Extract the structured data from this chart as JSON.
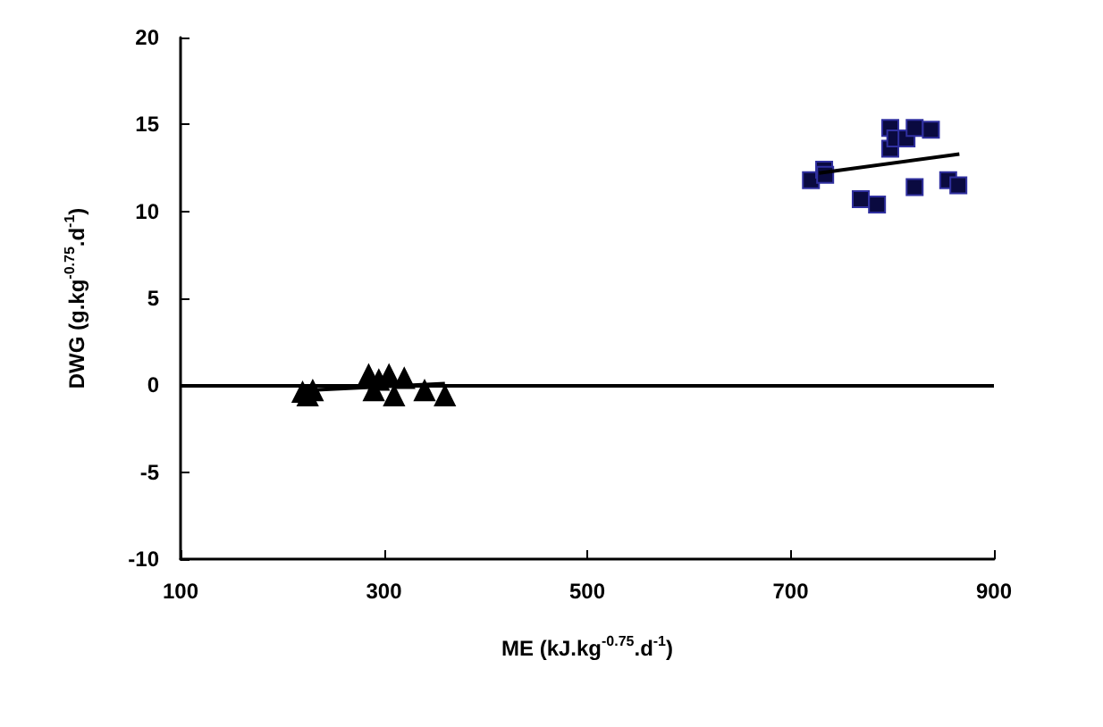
{
  "chart_data": {
    "type": "scatter",
    "xlabel": "ME (kJ.kg$^{-0.75}$.d$^{-1}$)",
    "ylabel": "DWG (g.kg$^{-0.75}$.d$^{-1}$)",
    "xlim": [
      100,
      900
    ],
    "xticks": [
      100,
      300,
      500,
      700,
      900
    ],
    "ylim": [
      -10,
      20
    ],
    "yticks": [
      -10,
      -5,
      0,
      5,
      10,
      15,
      20
    ],
    "grid": false,
    "ref_lines": [
      {
        "axis": "y",
        "value": 0,
        "color": "#000000"
      }
    ],
    "series": [
      {
        "marker": "triangle",
        "color": "#000000",
        "x": [
          220,
          225,
          230,
          285,
          290,
          295,
          305,
          310,
          320,
          340,
          360
        ],
        "values": [
          -0.4,
          -0.6,
          -0.3,
          0.6,
          -0.3,
          0.3,
          0.6,
          -0.6,
          0.4,
          -0.3,
          -0.6
        ]
      },
      {
        "marker": "square",
        "color": "#0a0a40",
        "x": [
          720,
          733,
          734,
          769,
          785,
          798,
          798,
          803,
          814,
          822,
          838,
          822,
          855,
          865
        ],
        "values": [
          11.8,
          12.4,
          12.1,
          10.7,
          10.4,
          14.8,
          13.6,
          14.2,
          14.2,
          14.8,
          14.7,
          11.4,
          11.8,
          11.5
        ]
      },
      {
        "type": "line",
        "marker": "none",
        "color": "#000000",
        "x": [
          220,
          360
        ],
        "values": [
          -0.3,
          0.1
        ]
      },
      {
        "type": "line",
        "marker": "none",
        "color": "#000000",
        "x": [
          728,
          866
        ],
        "values": [
          12.2,
          13.3
        ]
      }
    ]
  }
}
